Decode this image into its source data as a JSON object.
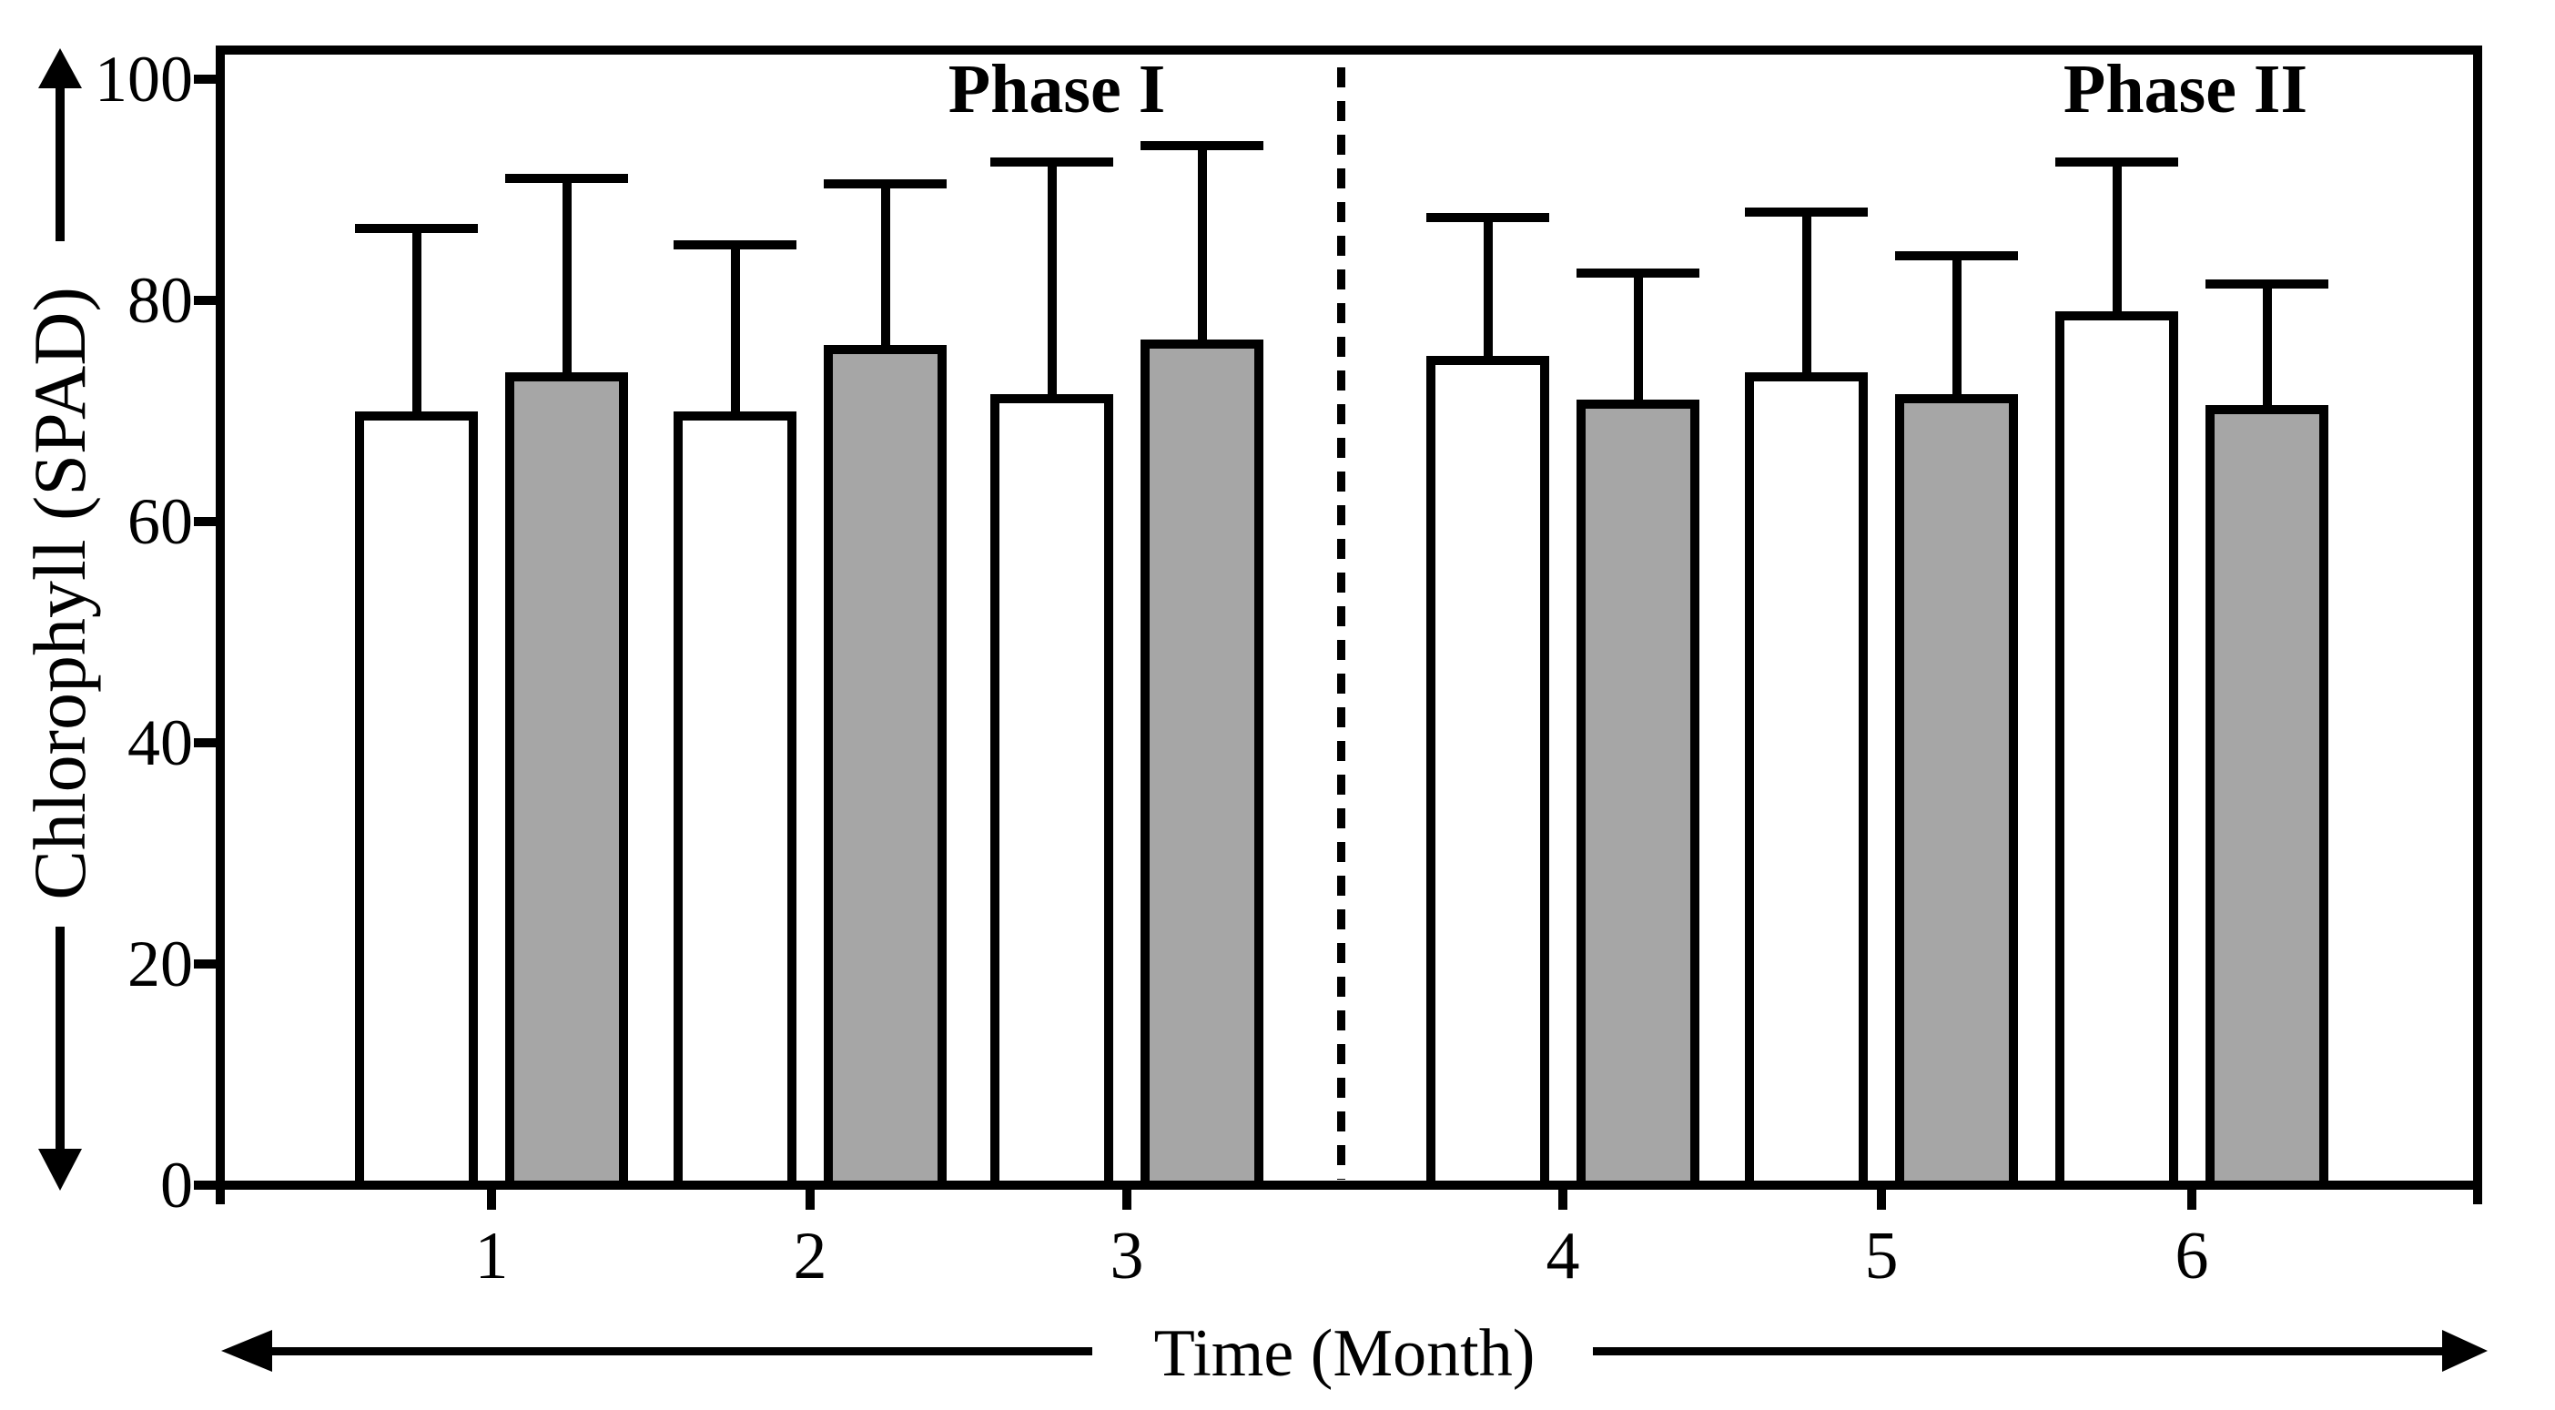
{
  "figure": {
    "background": "#ffffff",
    "ink": "#000000"
  },
  "labels": {
    "phase_1": "Phase I",
    "phase_2": "Phase II",
    "x_axis": "Time (Month)",
    "y_axis": "Chlorophyll (SPAD)"
  },
  "colors": {
    "ink": "#000000",
    "bar_white": "#ffffff",
    "bar_gray": "#a6a6a6"
  },
  "chart_data": {
    "type": "bar",
    "title": "",
    "xlabel": "Time (Month)",
    "ylabel": "Chlorophyll (SPAD)",
    "categories": [
      "1",
      "2",
      "3",
      "4",
      "5",
      "6"
    ],
    "ylim": [
      0,
      100
    ],
    "yticks": [
      0,
      20,
      40,
      60,
      80,
      100
    ],
    "grid": false,
    "legend": "none",
    "error_bars": "upper whiskers only, cap width equal to bar width",
    "series": [
      {
        "name": "white-open-bars",
        "fill": "#ffffff",
        "values": [
          70,
          70,
          71.5,
          75,
          73.5,
          79
        ],
        "error_up": [
          16.5,
          15,
          21,
          12.5,
          14.5,
          13.5
        ]
      },
      {
        "name": "gray-filled-bars",
        "fill": "#a6a6a6",
        "values": [
          73.5,
          76,
          76.5,
          71,
          71.5,
          70.5
        ],
        "error_up": [
          17.5,
          14.5,
          17.5,
          11.5,
          12.5,
          11
        ]
      }
    ],
    "annotations": [
      {
        "text": "Phase I",
        "region": "months 1-3 (left of dashed divider)"
      },
      {
        "text": "Phase II",
        "region": "months 4-6 (right of dashed divider)"
      }
    ]
  }
}
